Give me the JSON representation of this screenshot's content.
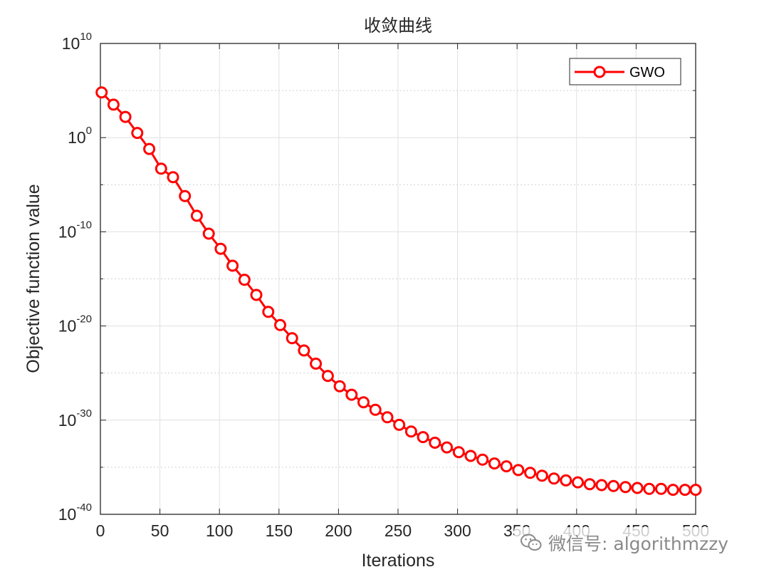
{
  "chart_data": {
    "type": "line",
    "title": "收敛曲线",
    "xlabel": "Iterations",
    "ylabel": "Objective function value",
    "xlim": [
      0,
      500
    ],
    "ylim_log10": [
      -40,
      10
    ],
    "y_scale": "log",
    "grid": true,
    "legend_position": "top-right",
    "x_ticks": [
      "0",
      "50",
      "100",
      "150",
      "200",
      "250",
      "300",
      "350",
      "400",
      "450",
      "500"
    ],
    "y_ticks": [
      {
        "base": "10",
        "exp": "10"
      },
      {
        "base": "10",
        "exp": "0"
      },
      {
        "base": "10",
        "exp": "-10"
      },
      {
        "base": "10",
        "exp": "-20"
      },
      {
        "base": "10",
        "exp": "-30"
      },
      {
        "base": "10",
        "exp": "-40"
      }
    ],
    "series": [
      {
        "name": "GWO",
        "color": "#ff0000",
        "marker": "circle",
        "x": [
          1,
          11,
          21,
          31,
          41,
          51,
          61,
          71,
          81,
          91,
          101,
          111,
          121,
          131,
          141,
          151,
          161,
          171,
          181,
          191,
          201,
          211,
          221,
          231,
          241,
          251,
          261,
          271,
          281,
          291,
          301,
          311,
          321,
          331,
          341,
          351,
          361,
          371,
          381,
          391,
          401,
          411,
          421,
          431,
          441,
          451,
          461,
          471,
          481,
          491,
          500
        ],
        "log10_y": [
          4.8,
          3.5,
          2.2,
          0.5,
          -1.2,
          -3.3,
          -4.2,
          -6.2,
          -8.3,
          -10.2,
          -11.8,
          -13.6,
          -15.1,
          -16.7,
          -18.5,
          -19.9,
          -21.3,
          -22.6,
          -24.0,
          -25.3,
          -26.4,
          -27.3,
          -28.1,
          -28.9,
          -29.7,
          -30.5,
          -31.2,
          -31.8,
          -32.4,
          -32.9,
          -33.4,
          -33.8,
          -34.2,
          -34.6,
          -34.9,
          -35.3,
          -35.6,
          -35.9,
          -36.2,
          -36.4,
          -36.6,
          -36.8,
          -36.9,
          -37.0,
          -37.1,
          -37.2,
          -37.3,
          -37.3,
          -37.4,
          -37.4,
          -37.4
        ]
      }
    ]
  },
  "watermark": {
    "icon": "wechat-icon",
    "text": "微信号: algorithmzzy"
  }
}
